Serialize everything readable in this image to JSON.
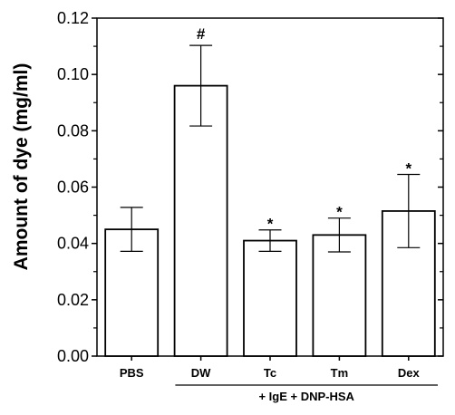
{
  "chart_data": {
    "type": "bar",
    "title": "",
    "xlabel": "",
    "ylabel": "Amount of dye (mg/ml)",
    "ylim": [
      0.0,
      0.12
    ],
    "yticks": [
      "0.00",
      "0.02",
      "0.04",
      "0.06",
      "0.08",
      "0.10",
      "0.12"
    ],
    "categories": [
      "PBS",
      "DW",
      "Tc",
      "Tm",
      "Dex"
    ],
    "values": [
      0.045,
      0.096,
      0.041,
      0.043,
      0.0515
    ],
    "errors": [
      0.0078,
      0.0143,
      0.0038,
      0.006,
      0.013
    ],
    "significance": [
      "",
      "#",
      "*",
      "*",
      "*"
    ],
    "group_label": "+ IgE + DNP-HSA",
    "group_categories": [
      "DW",
      "Tc",
      "Tm",
      "Dex"
    ],
    "bar_fill": "#ffffff",
    "bar_stroke": "#000000",
    "grid": false
  }
}
